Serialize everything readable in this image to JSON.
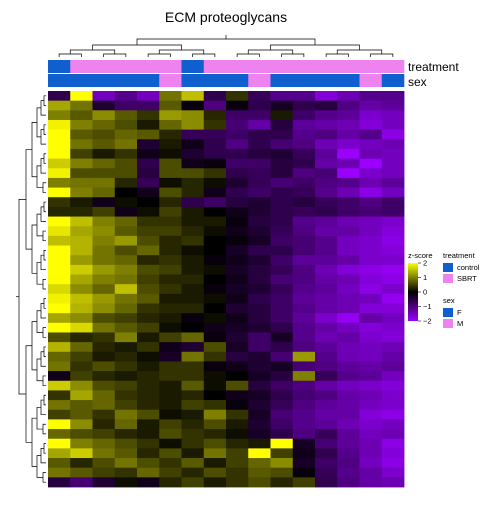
{
  "chart_data": {
    "type": "heatmap",
    "title": "ECM proteoglycans",
    "annotation_rows": [
      {
        "name": "treatment",
        "values": [
          "control",
          "SBRT",
          "SBRT",
          "SBRT",
          "SBRT",
          "SBRT",
          "control",
          "SBRT",
          "SBRT",
          "SBRT",
          "SBRT",
          "SBRT",
          "SBRT",
          "SBRT",
          "SBRT",
          "SBRT"
        ]
      },
      {
        "name": "sex",
        "values": [
          "F",
          "F",
          "F",
          "F",
          "F",
          "M",
          "F",
          "F",
          "F",
          "M",
          "F",
          "F",
          "F",
          "F",
          "M",
          "F"
        ]
      }
    ],
    "z": [
      [
        -0.6,
        2.4,
        -1.5,
        -1.1,
        -1.5,
        0.9,
        1.5,
        -0.6,
        0.4,
        -0.7,
        -1.1,
        -1.1,
        -1.7,
        -1.4,
        -1.1,
        -1.1
      ],
      [
        1.3,
        0.9,
        -0.4,
        -0.8,
        -0.8,
        0.7,
        -0.1,
        -1.0,
        -0.1,
        -0.6,
        -0.3,
        -0.6,
        -0.5,
        -1.0,
        -1.3,
        -1.2
      ],
      [
        1.0,
        0.7,
        1.1,
        0.7,
        0.4,
        1.2,
        1.1,
        0.3,
        -0.8,
        -0.8,
        0.2,
        -0.8,
        -1.1,
        -1.2,
        -1.6,
        -1.5
      ],
      [
        1.9,
        1.0,
        0.8,
        0.6,
        0.2,
        0.8,
        1.1,
        0.4,
        -0.9,
        -1.3,
        -0.5,
        -1.2,
        -1.3,
        -1.4,
        -1.7,
        -1.5
      ],
      [
        2.3,
        0.7,
        0.6,
        0.8,
        0.7,
        0.3,
        -0.7,
        -0.7,
        -0.8,
        -0.6,
        -0.6,
        -1.1,
        -1.0,
        -1.3,
        -1.1,
        -1.8
      ],
      [
        2.2,
        0.9,
        0.7,
        0.9,
        -0.4,
        0.2,
        -0.2,
        -0.6,
        -1.0,
        -0.6,
        -0.9,
        -1.0,
        -1.4,
        -1.6,
        -1.5,
        -1.4
      ],
      [
        2.4,
        0.5,
        0.2,
        0.4,
        -0.2,
        0.1,
        -0.4,
        -0.6,
        -0.6,
        -0.5,
        -0.4,
        -0.7,
        -1.2,
        -2.0,
        -1.4,
        -1.5
      ],
      [
        1.6,
        1.0,
        0.8,
        0.6,
        -0.6,
        0.6,
        -0.2,
        -0.1,
        -0.8,
        -0.8,
        -0.5,
        -0.6,
        -1.3,
        -1.4,
        -2.0,
        -1.5
      ],
      [
        1.9,
        0.6,
        0.6,
        0.6,
        -0.5,
        0.6,
        0.6,
        0.4,
        -0.6,
        -0.7,
        -0.5,
        -1.0,
        -0.9,
        -2.1,
        -1.6,
        -1.5
      ],
      [
        1.0,
        0.9,
        0.9,
        0.3,
        -0.7,
        0.1,
        0.3,
        0.1,
        -0.4,
        -0.7,
        -0.9,
        -0.8,
        -1.0,
        -1.1,
        -1.4,
        -1.2
      ],
      [
        2.0,
        1.0,
        0.8,
        0.0,
        -0.2,
        0.6,
        0.3,
        -0.2,
        -0.6,
        -0.8,
        -0.6,
        -0.7,
        -1.1,
        -1.4,
        -1.8,
        -1.5
      ],
      [
        0.4,
        0.2,
        -0.2,
        0.1,
        0.0,
        0.3,
        -0.6,
        -0.8,
        -0.5,
        -0.4,
        -0.6,
        -0.5,
        -0.7,
        -0.8,
        -1.0,
        -0.8
      ],
      [
        0.3,
        0.3,
        0.5,
        -0.2,
        0.1,
        0.5,
        0.2,
        0.0,
        -0.2,
        -0.4,
        -0.6,
        -0.7,
        -0.6,
        -0.8,
        -0.9,
        -0.8
      ],
      [
        2.1,
        1.5,
        1.0,
        0.8,
        0.4,
        0.4,
        0.2,
        0.2,
        -0.1,
        -0.5,
        -0.6,
        -1.1,
        -1.2,
        -1.4,
        -1.5,
        -1.6
      ],
      [
        1.8,
        1.3,
        1.1,
        0.7,
        0.5,
        0.5,
        0.3,
        0.1,
        -0.2,
        -0.4,
        -0.7,
        -1.0,
        -1.3,
        -1.3,
        -1.5,
        -1.7
      ],
      [
        1.5,
        1.4,
        1.0,
        1.2,
        0.6,
        0.3,
        0.4,
        0.0,
        -0.1,
        -0.3,
        -0.8,
        -0.9,
        -1.1,
        -1.5,
        -1.6,
        -1.8
      ],
      [
        2.2,
        1.4,
        0.9,
        0.6,
        0.8,
        0.3,
        0.1,
        0.0,
        -0.3,
        -0.6,
        -0.6,
        -0.9,
        -1.1,
        -1.5,
        -1.6,
        -1.7
      ],
      [
        2.3,
        1.2,
        0.9,
        0.8,
        0.3,
        0.4,
        0.2,
        -0.1,
        -0.2,
        -0.4,
        -0.8,
        -1.2,
        -1.2,
        -1.3,
        -1.6,
        -1.6
      ],
      [
        2.4,
        1.6,
        1.2,
        1.0,
        0.6,
        0.5,
        0.2,
        0.1,
        -0.3,
        -0.5,
        -0.7,
        -1.0,
        -1.4,
        -1.7,
        -1.8,
        -1.9
      ],
      [
        2.2,
        1.3,
        1.0,
        0.9,
        0.5,
        0.3,
        0.3,
        0.0,
        -0.2,
        -0.5,
        -0.9,
        -1.0,
        -1.3,
        -1.4,
        -1.7,
        -1.8
      ],
      [
        1.7,
        1.1,
        0.8,
        1.5,
        0.6,
        0.4,
        0.2,
        -0.1,
        -0.3,
        -0.4,
        -0.7,
        -1.1,
        -1.2,
        -1.5,
        -1.8,
        -1.6
      ],
      [
        1.9,
        1.5,
        1.2,
        0.9,
        0.7,
        0.2,
        0.2,
        0.1,
        -0.2,
        -0.6,
        -0.8,
        -1.2,
        -1.3,
        -1.4,
        -1.5,
        -1.9
      ],
      [
        2.0,
        1.4,
        1.1,
        0.8,
        0.4,
        0.3,
        0.3,
        0.0,
        -0.4,
        -0.5,
        -0.8,
        -1.1,
        -1.3,
        -1.4,
        -1.7,
        -1.7
      ],
      [
        1.3,
        1.1,
        0.6,
        0.5,
        0.3,
        0.2,
        -0.1,
        0.1,
        -0.2,
        -0.5,
        -0.8,
        -1.2,
        -1.6,
        -1.9,
        -1.3,
        -1.5
      ],
      [
        2.1,
        1.7,
        0.9,
        0.7,
        0.5,
        0.1,
        0.0,
        -0.2,
        -0.3,
        -0.4,
        -0.6,
        -1.1,
        -1.3,
        -1.5,
        -1.7,
        -1.6
      ],
      [
        0.6,
        0.3,
        0.4,
        1.0,
        0.2,
        0.5,
        0.8,
        -0.1,
        -0.4,
        -0.8,
        -0.3,
        -1.1,
        -1.4,
        -1.3,
        -1.6,
        -1.7
      ],
      [
        1.4,
        0.8,
        0.3,
        0.2,
        0.4,
        -0.2,
        -0.4,
        0.6,
        -0.3,
        -0.8,
        -0.6,
        -1.0,
        -1.2,
        -1.4,
        -1.5,
        -1.4
      ],
      [
        0.8,
        0.5,
        0.2,
        0.3,
        0.1,
        -0.3,
        0.9,
        0.4,
        -0.5,
        -0.4,
        -0.9,
        1.2,
        -1.1,
        -1.4,
        -1.5,
        -1.3
      ],
      [
        0.9,
        0.4,
        0.6,
        0.4,
        0.2,
        0.4,
        0.4,
        -0.1,
        -0.2,
        -0.4,
        -0.3,
        -0.9,
        -1.0,
        -1.2,
        -1.3,
        -1.2
      ],
      [
        -0.2,
        0.5,
        0.3,
        0.2,
        0.3,
        0.4,
        0.4,
        0.1,
        0.0,
        -0.3,
        -0.5,
        1.0,
        -0.7,
        -1.1,
        -1.2,
        -1.5
      ],
      [
        1.6,
        1.1,
        0.6,
        0.5,
        0.3,
        0.2,
        0.7,
        0.1,
        0.6,
        -0.5,
        -0.8,
        -1.0,
        -1.3,
        -1.5,
        -1.6,
        -1.7
      ],
      [
        0.4,
        1.3,
        0.8,
        0.4,
        0.3,
        0.2,
        0.3,
        0.0,
        -0.2,
        -0.3,
        -0.6,
        -0.9,
        -1.0,
        -1.3,
        -1.4,
        -1.6
      ],
      [
        0.9,
        0.7,
        0.8,
        0.5,
        0.3,
        0.2,
        0.5,
        0.4,
        -0.1,
        -0.4,
        -0.7,
        -1.0,
        -1.2,
        -1.3,
        -1.5,
        -1.6
      ],
      [
        0.5,
        0.7,
        0.4,
        0.9,
        0.6,
        0.1,
        0.2,
        1.0,
        0.4,
        -0.3,
        -0.9,
        -1.1,
        -1.3,
        -1.3,
        -1.7,
        -1.8
      ],
      [
        2.0,
        1.1,
        0.3,
        0.8,
        0.2,
        0.5,
        0.3,
        0.6,
        0.2,
        -0.4,
        -0.8,
        -1.1,
        -1.2,
        -1.4,
        -1.6,
        -1.5
      ],
      [
        0.8,
        0.6,
        0.5,
        0.3,
        0.2,
        0.6,
        0.4,
        0.3,
        0.1,
        -0.3,
        -0.6,
        -1.0,
        -0.7,
        -1.2,
        -1.5,
        -1.4
      ],
      [
        2.1,
        1.0,
        0.8,
        0.6,
        0.4,
        0.1,
        0.4,
        0.6,
        0.3,
        0.2,
        2.3,
        -0.3,
        -0.9,
        -1.2,
        -1.4,
        -1.8
      ],
      [
        1.3,
        1.6,
        0.9,
        0.7,
        0.3,
        0.6,
        0.2,
        0.9,
        0.5,
        2.1,
        0.5,
        -0.2,
        -0.6,
        -1.1,
        -1.4,
        -1.7
      ],
      [
        0.7,
        0.3,
        0.6,
        0.9,
        0.6,
        0.4,
        0.7,
        0.2,
        0.5,
        0.8,
        1.1,
        -0.3,
        -0.8,
        -1.0,
        -1.5,
        -1.8
      ],
      [
        0.9,
        0.7,
        0.5,
        0.4,
        0.8,
        0.5,
        0.3,
        0.6,
        0.4,
        0.7,
        0.6,
        -0.1,
        -0.7,
        -1.1,
        -1.3,
        -1.6
      ],
      [
        -0.5,
        -0.9,
        -0.4,
        0.1,
        -0.2,
        0.3,
        0.5,
        0.2,
        0.4,
        0.6,
        0.3,
        0.5,
        -0.6,
        -1.0,
        -1.3,
        -1.4
      ]
    ]
  },
  "legend": {
    "zscore_title": "z-score",
    "zscore_ticks": [
      "2",
      "1",
      "0",
      "−1",
      "−2"
    ],
    "zscore_tick_values": [
      2,
      1,
      0,
      -1,
      -2
    ],
    "treatment_title": "treatment",
    "treatment_items": [
      {
        "label": "control",
        "color": "#0f5fcf"
      },
      {
        "label": "SBRT",
        "color": "#ee82ee"
      }
    ],
    "sex_title": "sex",
    "sex_items": [
      {
        "label": "F",
        "color": "#0f5fcf"
      },
      {
        "label": "M",
        "color": "#ee82ee"
      }
    ]
  },
  "colors": {
    "high": "#ffff00",
    "mid": "#000000",
    "low": "#9b00ff"
  }
}
